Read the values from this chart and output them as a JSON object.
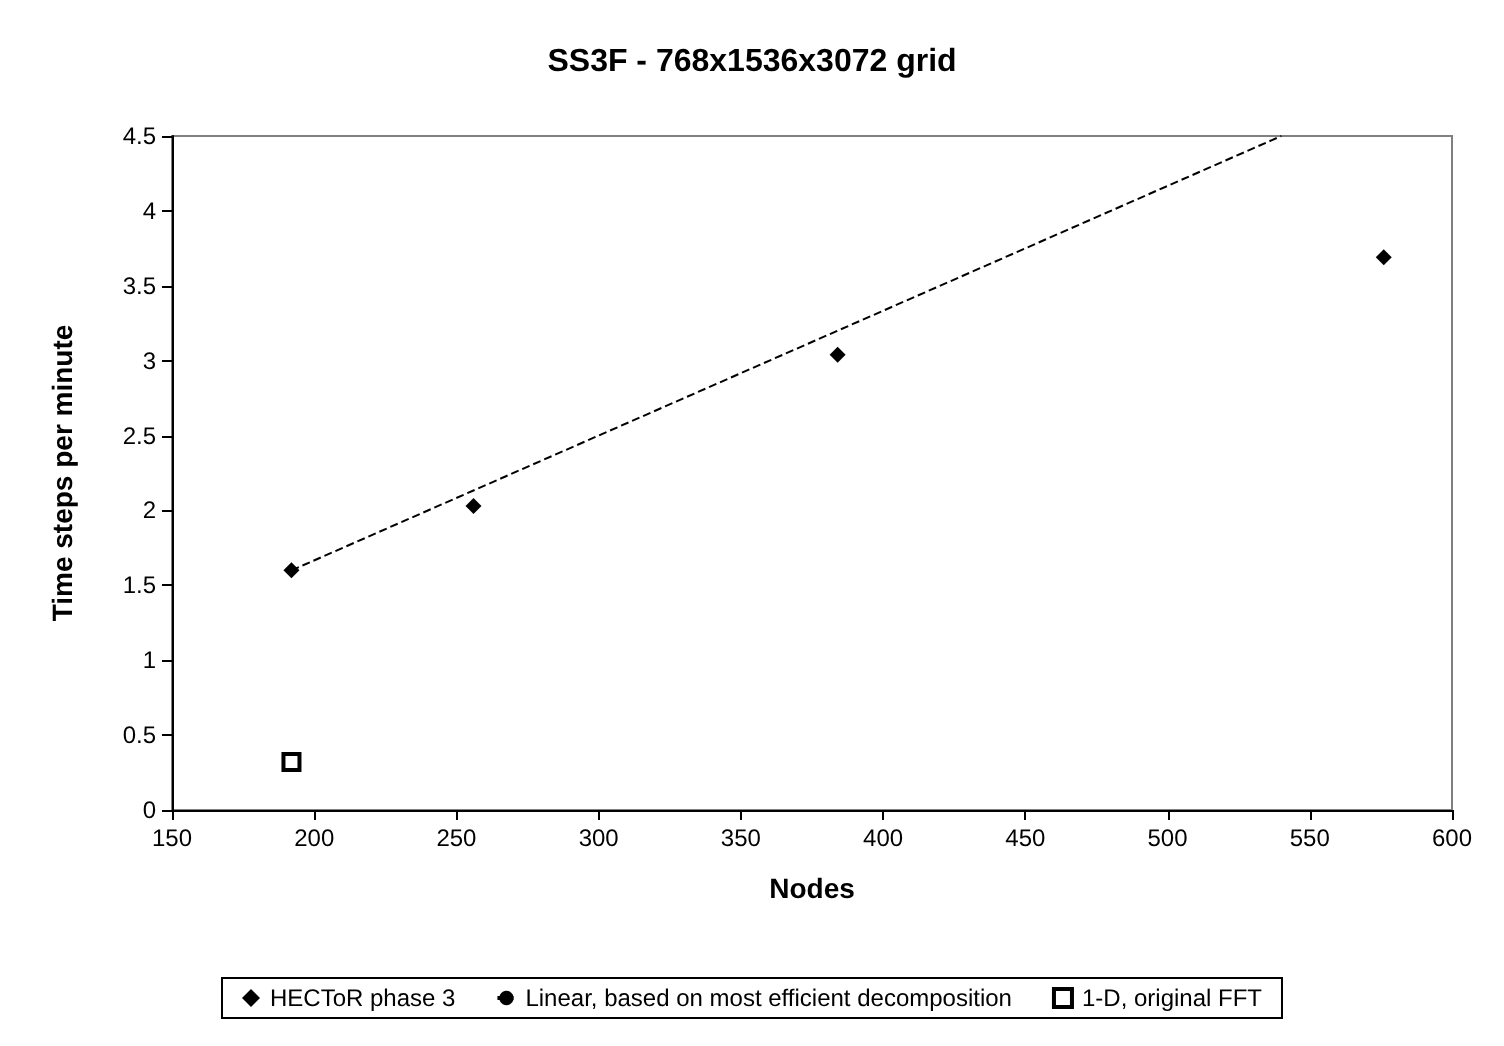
{
  "chart_data": {
    "type": "scatter",
    "title": "SS3F - 768x1536x3072 grid",
    "xlabel": "Nodes",
    "ylabel": "Time steps per minute",
    "xlim": [
      150,
      600
    ],
    "xticks": [
      150,
      200,
      250,
      300,
      350,
      400,
      450,
      500,
      550,
      600
    ],
    "ylim": [
      0,
      4.5
    ],
    "yticks": [
      0,
      0.5,
      1,
      1.5,
      2,
      2.5,
      3,
      3.5,
      4,
      4.5
    ],
    "grid": false,
    "legend": "bottom",
    "series": [
      {
        "name": "HECToR phase 3",
        "marker": "diamond",
        "color": "#000000",
        "x": [
          192,
          256,
          384,
          576
        ],
        "values": [
          1.6,
          2.03,
          3.04,
          3.69
        ]
      },
      {
        "name": "Linear, based on most efficient decomposition",
        "type": "line",
        "marker": "none",
        "line_style": "dashed",
        "color": "#000000",
        "x": [
          192,
          540
        ],
        "values": [
          1.6,
          4.5
        ]
      },
      {
        "name": "1-D, original FFT",
        "marker": "square",
        "color": "#000000",
        "x": [
          192
        ],
        "values": [
          0.32
        ]
      }
    ]
  }
}
